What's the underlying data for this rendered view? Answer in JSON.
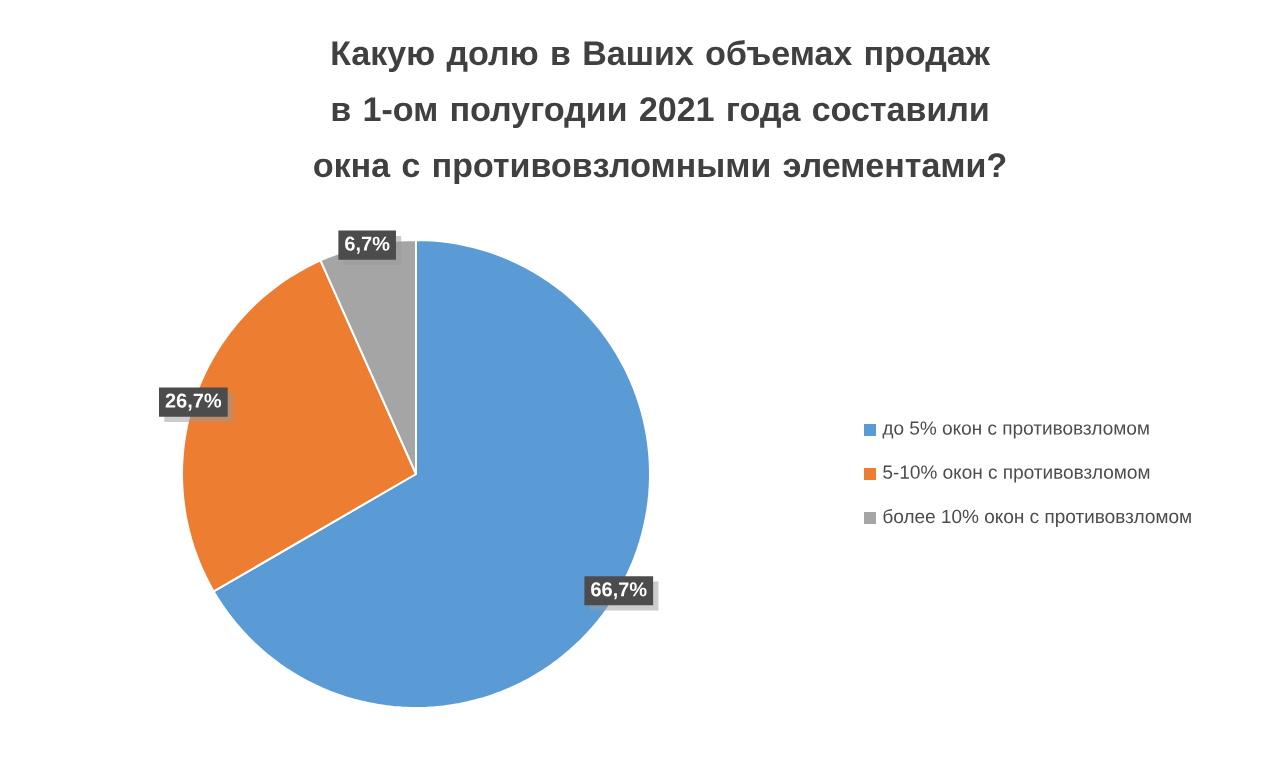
{
  "chart_data": {
    "type": "pie",
    "title": "Какую долю в Ваших объемах продаж в 1-ом полугодии 2021 года составили окна с противовзломными элементами?",
    "categories": [
      "до 5% окон с противовзломом",
      "5-10% окон с противовзломом",
      "более 10% окон с противовзломом"
    ],
    "values": [
      66.7,
      26.7,
      6.7
    ],
    "value_labels": [
      "66,7%",
      "26,7%",
      "6,7%"
    ],
    "colors": [
      "#5b9bd5",
      "#ed7d31",
      "#a5a5a5"
    ],
    "legend": "right"
  }
}
